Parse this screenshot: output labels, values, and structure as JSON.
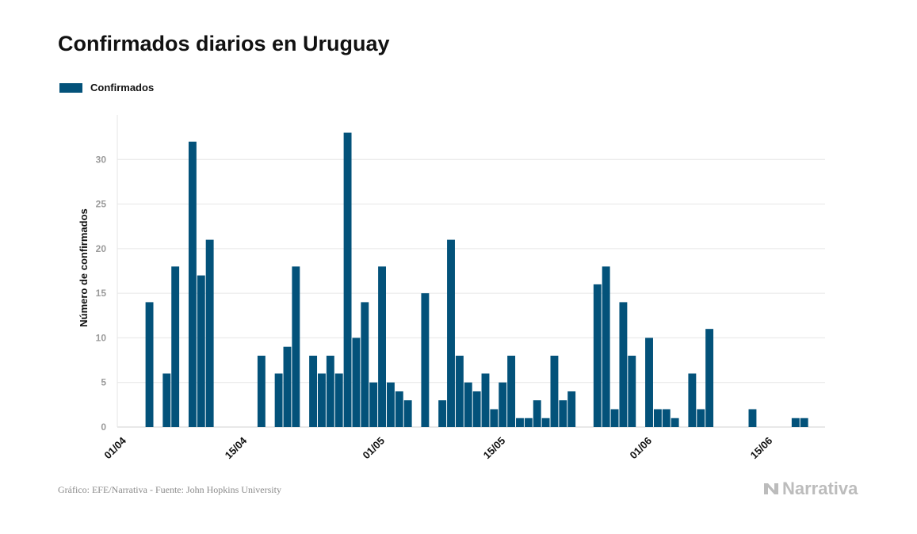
{
  "title": "Confirmados diarios en Uruguay",
  "source": "Gráfico: EFE/Narrativa - Fuente: John Hopkins University",
  "brand": "Narrativa",
  "colors": {
    "bar": "#03527a",
    "grid": "#e6e6e6",
    "tick": "#9a9a9a",
    "text": "#111111"
  },
  "chart_data": {
    "type": "bar",
    "title": "Confirmados diarios en Uruguay",
    "ylabel": "Número de confirmados",
    "xlabel": "",
    "ylim": [
      0,
      35
    ],
    "yticks": [
      0,
      5,
      10,
      15,
      20,
      25,
      30
    ],
    "grid": true,
    "legend_position": "top-left",
    "xtick_labels": [
      {
        "label": "01/04",
        "index": 0
      },
      {
        "label": "15/04",
        "index": 14
      },
      {
        "label": "01/05",
        "index": 30
      },
      {
        "label": "15/05",
        "index": 44
      },
      {
        "label": "01/06",
        "index": 61
      },
      {
        "label": "15/06",
        "index": 75
      }
    ],
    "series": [
      {
        "name": "Confirmados",
        "values": [
          0,
          0,
          0,
          14,
          0,
          6,
          18,
          0,
          32,
          17,
          21,
          0,
          0,
          0,
          0,
          0,
          8,
          0,
          6,
          9,
          18,
          0,
          8,
          6,
          8,
          6,
          33,
          10,
          14,
          5,
          18,
          5,
          4,
          3,
          0,
          15,
          0,
          3,
          21,
          8,
          5,
          4,
          6,
          2,
          5,
          8,
          1,
          1,
          3,
          1,
          8,
          3,
          4,
          0,
          0,
          16,
          18,
          2,
          14,
          8,
          0,
          10,
          2,
          2,
          1,
          0,
          6,
          2,
          11,
          0,
          0,
          0,
          0,
          2,
          0,
          0,
          0,
          0,
          1,
          1,
          0
        ]
      }
    ]
  }
}
